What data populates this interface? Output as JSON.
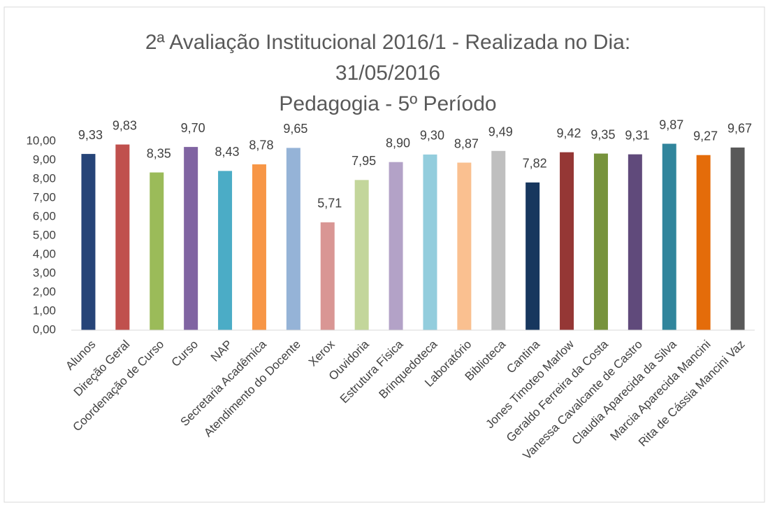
{
  "chart_data": {
    "type": "bar",
    "title": [
      "2ª Avaliação Institucional 2016/1 - Realizada no Dia:",
      "31/05/2016",
      "Pedagogia - 5º Período"
    ],
    "categories": [
      "Alunos",
      "Direção Geral",
      "Coordenação de Curso",
      "Curso",
      "NAP",
      "Secretaria Acadêmica",
      "Atendimento do Docente",
      "Xerox",
      "Ouvidoria",
      "Estrutura Física",
      "Brinquedoteca",
      "Laboratório",
      "Biblioteca",
      "Cantina",
      "Jones Timoteo Marlow",
      "Geraldo Ferreira da Costa",
      "Vanessa Cavalcante de Castro",
      "Claudia Aparecida da Silva",
      "Marcia Aparecida Mancini",
      "Rita de Cássia Mancini Vaz"
    ],
    "values": [
      9.33,
      9.83,
      8.35,
      9.7,
      8.43,
      8.78,
      9.65,
      5.71,
      7.95,
      8.9,
      9.3,
      8.87,
      9.49,
      7.82,
      9.42,
      9.35,
      9.31,
      9.87,
      9.27,
      9.67
    ],
    "value_labels": [
      "9,33",
      "9,83",
      "8,35",
      "9,70",
      "8,43",
      "8,78",
      "9,65",
      "5,71",
      "7,95",
      "8,90",
      "9,30",
      "8,87",
      "9,49",
      "7,82",
      "9,42",
      "9,35",
      "9,31",
      "9,87",
      "9,27",
      "9,67"
    ],
    "colors": [
      "#264478",
      "#c0504d",
      "#9bbb59",
      "#8064a2",
      "#4bacc6",
      "#f79646",
      "#95b3d7",
      "#d99694",
      "#c3d69b",
      "#b3a2c7",
      "#93cddd",
      "#fac090",
      "#bfbfbf",
      "#17375e",
      "#953735",
      "#77933c",
      "#604a7b",
      "#31859c",
      "#e46c0a",
      "#595959"
    ],
    "ylim": [
      0,
      10
    ],
    "yticks": [
      {
        "value": 0,
        "label": "0,00"
      },
      {
        "value": 1,
        "label": "1,00"
      },
      {
        "value": 2,
        "label": "2,00"
      },
      {
        "value": 3,
        "label": "3,00"
      },
      {
        "value": 4,
        "label": "4,00"
      },
      {
        "value": 5,
        "label": "5,00"
      },
      {
        "value": 6,
        "label": "6,00"
      },
      {
        "value": 7,
        "label": "7,00"
      },
      {
        "value": 8,
        "label": "8,00"
      },
      {
        "value": 9,
        "label": "9,00"
      },
      {
        "value": 10,
        "label": "10,00"
      }
    ],
    "grid": false
  }
}
